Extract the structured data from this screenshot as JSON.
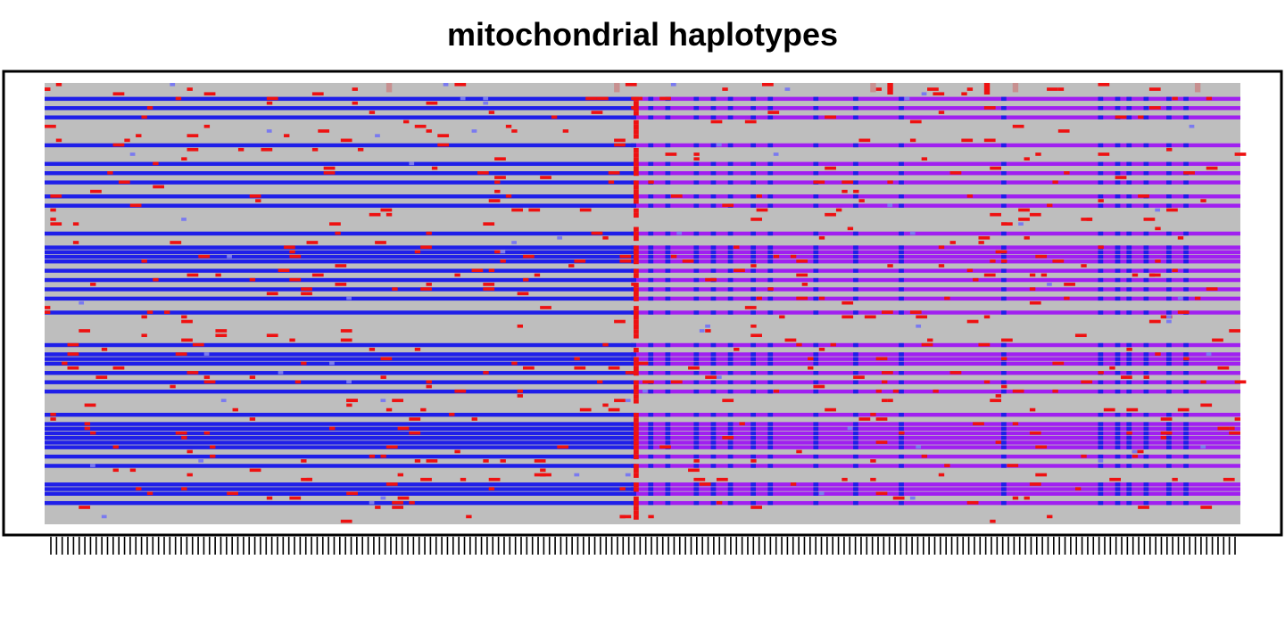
{
  "chart_data": {
    "type": "heatmap",
    "title": "mitochondrial haplotypes",
    "xlabel": "",
    "ylabel": "",
    "colors": {
      "background": "#bebebe",
      "blue": "#1f1fe8",
      "light_blue": "#7a7af0",
      "purple": "#a020f0",
      "red": "#ee1111",
      "pink": "#c89090"
    },
    "column_count": 210,
    "row_count": 95,
    "note_visible_labels": "column tick labels are too small to read in the original"
  }
}
